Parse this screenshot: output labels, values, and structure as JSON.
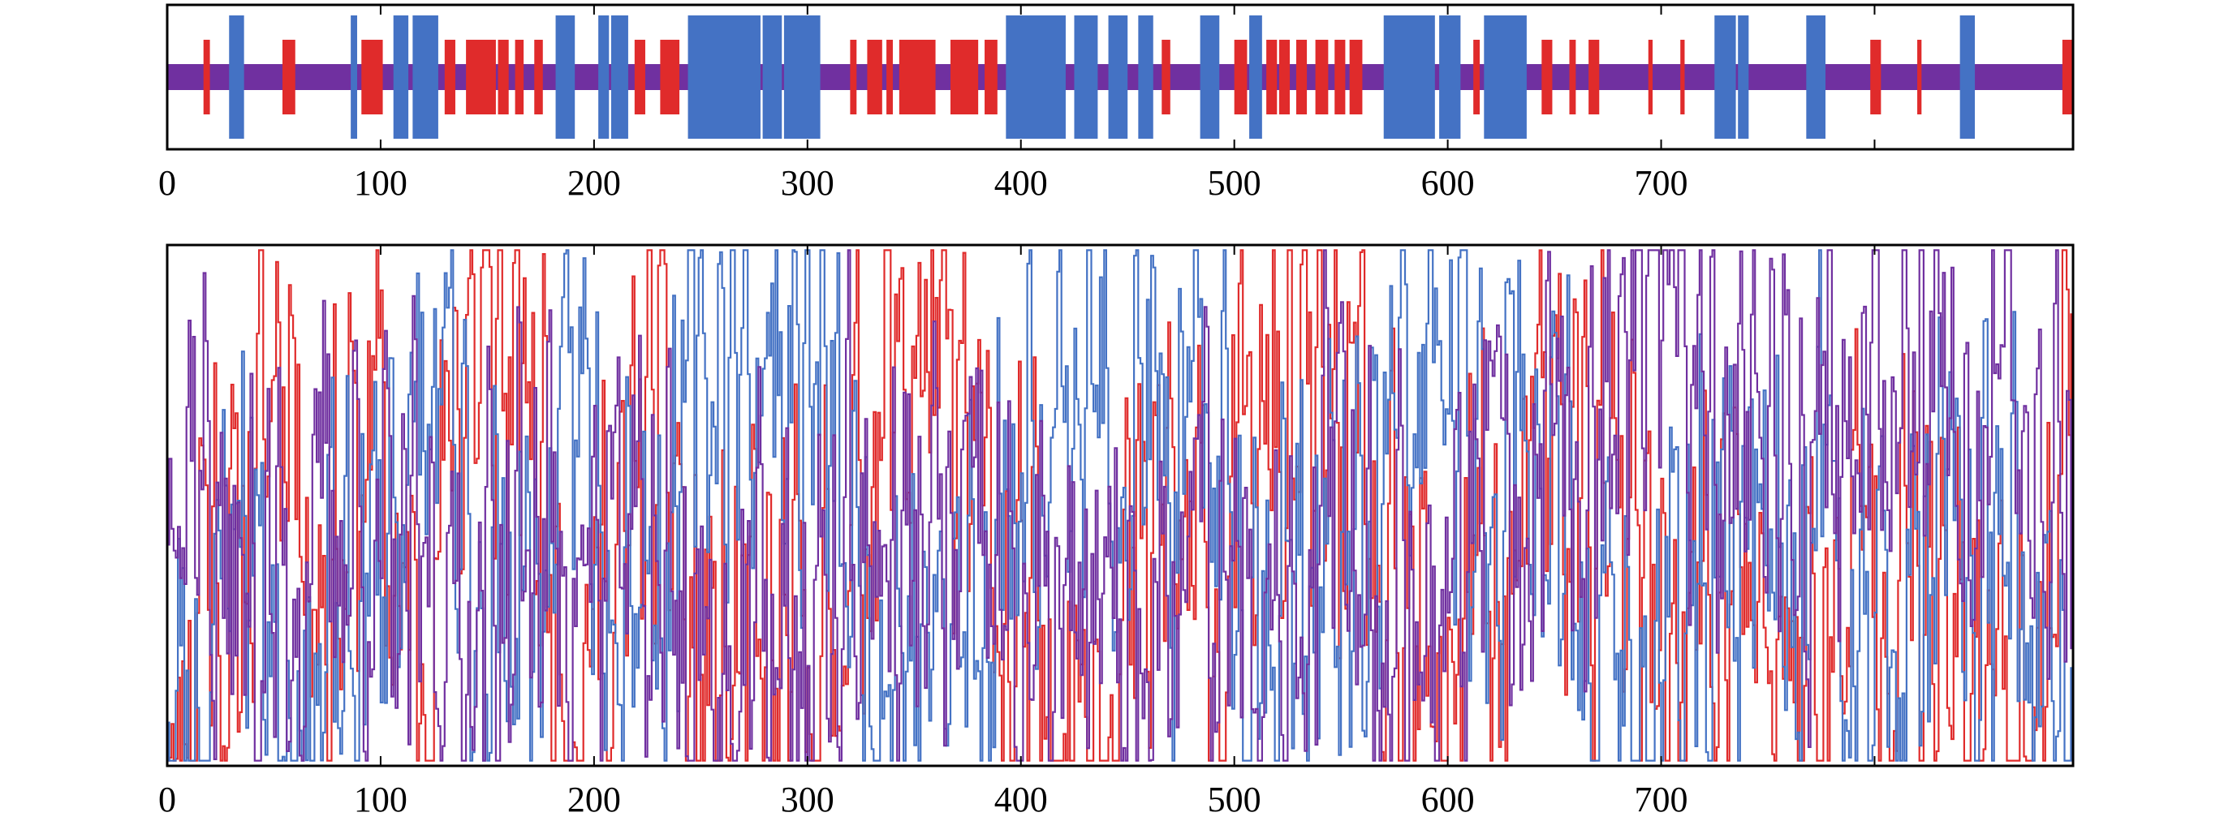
{
  "colors": {
    "alpha": "#e02b2b",
    "beta": "#4472c4",
    "coil": "#7030a0",
    "frame": "#000000"
  },
  "chart_data": [
    {
      "type": "bar",
      "xlim": [
        0,
        893
      ],
      "xticks": [
        0,
        100,
        200,
        300,
        400,
        500,
        600,
        700,
        800
      ],
      "xtick_labels": [
        "0",
        "100",
        "200",
        "300",
        "400",
        "500",
        "600",
        "700",
        ""
      ],
      "coil_band": {
        "from": 0,
        "to": 893
      },
      "segments": [
        {
          "type": "alpha",
          "start": 17,
          "end": 20
        },
        {
          "type": "beta",
          "start": 29,
          "end": 36
        },
        {
          "type": "alpha",
          "start": 54,
          "end": 60
        },
        {
          "type": "beta",
          "start": 86,
          "end": 89
        },
        {
          "type": "alpha",
          "start": 91,
          "end": 101
        },
        {
          "type": "beta",
          "start": 106,
          "end": 113
        },
        {
          "type": "beta",
          "start": 115,
          "end": 127
        },
        {
          "type": "alpha",
          "start": 130,
          "end": 135
        },
        {
          "type": "alpha",
          "start": 140,
          "end": 154
        },
        {
          "type": "alpha",
          "start": 155,
          "end": 160
        },
        {
          "type": "alpha",
          "start": 163,
          "end": 167
        },
        {
          "type": "alpha",
          "start": 172,
          "end": 176
        },
        {
          "type": "beta",
          "start": 182,
          "end": 191
        },
        {
          "type": "beta",
          "start": 202,
          "end": 207
        },
        {
          "type": "beta",
          "start": 208,
          "end": 216
        },
        {
          "type": "alpha",
          "start": 219,
          "end": 224
        },
        {
          "type": "alpha",
          "start": 231,
          "end": 240
        },
        {
          "type": "beta",
          "start": 244,
          "end": 278
        },
        {
          "type": "beta",
          "start": 279,
          "end": 288
        },
        {
          "type": "beta",
          "start": 289,
          "end": 306
        },
        {
          "type": "alpha",
          "start": 320,
          "end": 323
        },
        {
          "type": "alpha",
          "start": 328,
          "end": 335
        },
        {
          "type": "alpha",
          "start": 337,
          "end": 340
        },
        {
          "type": "alpha",
          "start": 343,
          "end": 360
        },
        {
          "type": "alpha",
          "start": 367,
          "end": 380
        },
        {
          "type": "alpha",
          "start": 383,
          "end": 389
        },
        {
          "type": "beta",
          "start": 393,
          "end": 421
        },
        {
          "type": "beta",
          "start": 425,
          "end": 436
        },
        {
          "type": "beta",
          "start": 441,
          "end": 450
        },
        {
          "type": "beta",
          "start": 455,
          "end": 462
        },
        {
          "type": "alpha",
          "start": 466,
          "end": 470
        },
        {
          "type": "beta",
          "start": 484,
          "end": 493
        },
        {
          "type": "alpha",
          "start": 500,
          "end": 506
        },
        {
          "type": "beta",
          "start": 507,
          "end": 513
        },
        {
          "type": "alpha",
          "start": 515,
          "end": 520
        },
        {
          "type": "alpha",
          "start": 521,
          "end": 526
        },
        {
          "type": "alpha",
          "start": 529,
          "end": 534
        },
        {
          "type": "alpha",
          "start": 538,
          "end": 544
        },
        {
          "type": "alpha",
          "start": 547,
          "end": 552
        },
        {
          "type": "alpha",
          "start": 554,
          "end": 560
        },
        {
          "type": "beta",
          "start": 570,
          "end": 594
        },
        {
          "type": "beta",
          "start": 596,
          "end": 606
        },
        {
          "type": "alpha",
          "start": 612,
          "end": 615
        },
        {
          "type": "beta",
          "start": 617,
          "end": 637
        },
        {
          "type": "alpha",
          "start": 644,
          "end": 649
        },
        {
          "type": "alpha",
          "start": 657,
          "end": 660
        },
        {
          "type": "alpha",
          "start": 666,
          "end": 671
        },
        {
          "type": "alpha",
          "start": 694,
          "end": 696
        },
        {
          "type": "alpha",
          "start": 709,
          "end": 711
        },
        {
          "type": "beta",
          "start": 725,
          "end": 735
        },
        {
          "type": "beta",
          "start": 736,
          "end": 741
        },
        {
          "type": "beta",
          "start": 768,
          "end": 777
        },
        {
          "type": "alpha",
          "start": 798,
          "end": 803
        },
        {
          "type": "alpha",
          "start": 820,
          "end": 822
        },
        {
          "type": "beta",
          "start": 840,
          "end": 847
        },
        {
          "type": "alpha",
          "start": 888,
          "end": 893
        }
      ]
    },
    {
      "type": "line",
      "xlim": [
        0,
        893
      ],
      "ylim": [
        0,
        1
      ],
      "xticks": [
        0,
        100,
        200,
        300,
        400,
        500,
        600,
        700,
        800
      ],
      "xtick_labels": [
        "0",
        "100",
        "200",
        "300",
        "400",
        "500",
        "600",
        "700",
        ""
      ],
      "series": [
        {
          "color": "#e02b2b",
          "n": 893,
          "seed": 11,
          "x": [
            0,
            11,
            17,
            29,
            55,
            70,
            91,
            101,
            106,
            127,
            130,
            140,
            160,
            176,
            182,
            191,
            202,
            216,
            219,
            231,
            240,
            244,
            306,
            320,
            343,
            360,
            367,
            389,
            393,
            421,
            436,
            462,
            466,
            484,
            493,
            500,
            513,
            515,
            534,
            547,
            560,
            570,
            606,
            612,
            617,
            637,
            644,
            671,
            694,
            711,
            725,
            741,
            768,
            777,
            798,
            803,
            820,
            840,
            847,
            880,
            888,
            893
          ],
          "y": [
            0.1,
            0.15,
            0.55,
            0.25,
            0.9,
            0.35,
            0.55,
            0.7,
            0.25,
            0.3,
            0.6,
            0.85,
            0.75,
            0.55,
            0.25,
            0.2,
            0.3,
            0.35,
            0.6,
            0.7,
            0.5,
            0.15,
            0.15,
            0.45,
            0.8,
            0.75,
            0.6,
            0.45,
            0.2,
            0.15,
            0.2,
            0.35,
            0.55,
            0.3,
            0.2,
            0.6,
            0.5,
            0.65,
            0.65,
            0.65,
            0.5,
            0.15,
            0.2,
            0.45,
            0.3,
            0.35,
            0.65,
            0.55,
            0.25,
            0.25,
            0.3,
            0.3,
            0.2,
            0.2,
            0.45,
            0.5,
            0.3,
            0.15,
            0.15,
            0.2,
            0.8,
            0.95
          ]
        },
        {
          "color": "#4472c4",
          "n": 893,
          "seed": 23,
          "x": [
            0,
            17,
            29,
            36,
            54,
            86,
            106,
            127,
            140,
            176,
            182,
            191,
            202,
            216,
            231,
            244,
            265,
            278,
            289,
            306,
            320,
            360,
            383,
            393,
            421,
            436,
            462,
            470,
            484,
            493,
            500,
            513,
            534,
            560,
            570,
            594,
            606,
            617,
            637,
            657,
            671,
            694,
            725,
            741,
            768,
            777,
            798,
            820,
            840,
            847,
            880,
            893
          ],
          "y": [
            0.1,
            0.1,
            0.5,
            0.55,
            0.15,
            0.2,
            0.55,
            0.65,
            0.35,
            0.35,
            0.5,
            0.7,
            0.6,
            0.55,
            0.35,
            0.7,
            0.85,
            0.75,
            0.8,
            0.7,
            0.35,
            0.2,
            0.3,
            0.55,
            0.75,
            0.7,
            0.65,
            0.45,
            0.6,
            0.65,
            0.4,
            0.35,
            0.35,
            0.3,
            0.6,
            0.75,
            0.65,
            0.55,
            0.7,
            0.3,
            0.2,
            0.08,
            0.45,
            0.55,
            0.4,
            0.45,
            0.2,
            0.25,
            0.45,
            0.4,
            0.2,
            0.2
          ]
        },
        {
          "color": "#7030a0",
          "n": 893,
          "seed": 37,
          "x": [
            0,
            17,
            29,
            54,
            86,
            106,
            127,
            140,
            160,
            176,
            191,
            216,
            231,
            244,
            306,
            320,
            343,
            360,
            389,
            393,
            421,
            462,
            470,
            493,
            500,
            534,
            560,
            570,
            606,
            617,
            637,
            657,
            671,
            700,
            711,
            741,
            768,
            777,
            798,
            820,
            847,
            880,
            893
          ],
          "y": [
            0.75,
            0.6,
            0.3,
            0.35,
            0.5,
            0.3,
            0.35,
            0.3,
            0.35,
            0.45,
            0.35,
            0.4,
            0.45,
            0.2,
            0.2,
            0.45,
            0.35,
            0.4,
            0.35,
            0.25,
            0.2,
            0.3,
            0.5,
            0.35,
            0.45,
            0.4,
            0.5,
            0.3,
            0.3,
            0.5,
            0.35,
            0.55,
            0.65,
            0.85,
            0.85,
            0.7,
            0.6,
            0.65,
            0.6,
            0.7,
            0.6,
            0.75,
            0.3
          ]
        }
      ]
    }
  ]
}
